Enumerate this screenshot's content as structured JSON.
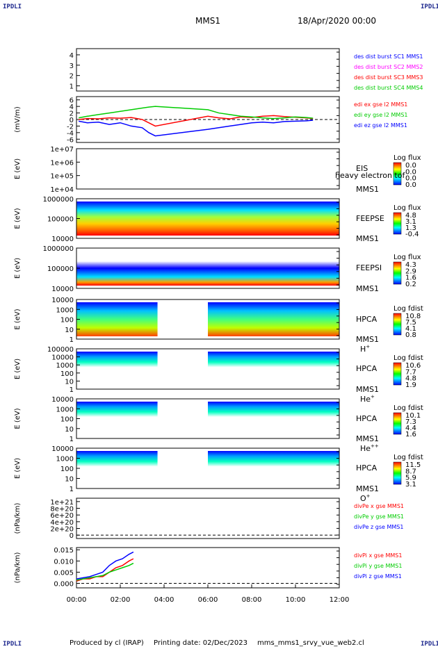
{
  "header": {
    "corner_label": "IPDLI",
    "mission": "MMS1",
    "date": "18/Apr/2020 00:00"
  },
  "footer": {
    "produced_by": "Produced by cl (IRAP)",
    "printing_date": "Printing date: 02/Dec/2023",
    "plot_name": "mms_mms1_srvy_vue_web2.cl"
  },
  "colors": {
    "blue": "#0000ff",
    "magenta": "#ff00ff",
    "red": "#ff0000",
    "green": "#00cc00"
  },
  "chart_data": [
    {
      "id": "des_dist",
      "type": "line",
      "yticks": [
        "1",
        "2",
        "3",
        "4"
      ],
      "ylim": [
        0.5,
        4.6
      ],
      "series": [
        {
          "name": "des dist burst SC1 MMS1",
          "color": "#0000ff",
          "values": []
        },
        {
          "name": "des dist burst SC2 MMS2",
          "color": "#ff00ff",
          "values": []
        },
        {
          "name": "des dist burst SC3 MMS3",
          "color": "#ff0000",
          "values": []
        },
        {
          "name": "des dist burst SC4 MMS4",
          "color": "#00cc00",
          "values": []
        }
      ]
    },
    {
      "id": "edi",
      "type": "line",
      "ylabel": "(mV/m)",
      "yticks": [
        "-6",
        "-4",
        "-2",
        "0",
        "2",
        "4",
        "6"
      ],
      "ylim": [
        -7,
        7
      ],
      "series": [
        {
          "name": "edi ex gse l2 MMS1",
          "color": "#ff0000",
          "x": [
            0.1,
            0.5,
            1.0,
            1.5,
            2.0,
            2.5,
            3.0,
            3.3,
            3.6,
            6.0,
            6.5,
            7.0,
            7.5,
            8.0,
            8.5,
            9.0,
            9.5,
            10.0,
            10.5,
            10.8
          ],
          "values": [
            0,
            0.3,
            0.2,
            0.5,
            0.4,
            0.6,
            0,
            -1,
            -2,
            1,
            0.5,
            0.2,
            0.8,
            0.6,
            1,
            1.2,
            0.9,
            0.7,
            0.5,
            0.3
          ]
        },
        {
          "name": "edi ey gse l2 MMS1",
          "color": "#00cc00",
          "x": [
            0.1,
            0.5,
            1.0,
            1.5,
            2.0,
            2.5,
            3.0,
            3.3,
            3.6,
            6.0,
            6.5,
            7.0,
            7.5,
            8.0,
            8.5,
            9.0,
            9.5,
            10.0,
            10.5,
            10.8
          ],
          "values": [
            0.5,
            1,
            1.5,
            2,
            2.5,
            3,
            3.5,
            3.8,
            4,
            3,
            2,
            1.5,
            1,
            0.8,
            0.5,
            0.3,
            0.5,
            0.8,
            0.6,
            0.4
          ]
        },
        {
          "name": "edi ez gse l2 MMS1",
          "color": "#0000ff",
          "x": [
            0.1,
            0.5,
            1.0,
            1.5,
            2.0,
            2.5,
            3.0,
            3.3,
            3.6,
            6.0,
            6.5,
            7.0,
            7.5,
            8.0,
            8.5,
            9.0,
            9.5,
            10.0,
            10.5,
            10.8
          ],
          "values": [
            -0.5,
            -1,
            -0.8,
            -1.5,
            -1,
            -2,
            -2.5,
            -4,
            -5,
            -3,
            -2.5,
            -2,
            -1.5,
            -1,
            -0.8,
            -1,
            -0.6,
            -0.5,
            -0.4,
            -0.2
          ]
        }
      ]
    },
    {
      "id": "eis",
      "type": "heatmap",
      "ylabel": "E (eV)",
      "yticks": [
        "1e+04",
        "1e+05",
        "1e+06",
        "1e+07"
      ],
      "side_label": "EIS",
      "overlay_label": "heavy electron tof",
      "sc_label": "MMS1",
      "cbar_title": "Log flux",
      "cbar_ticks": [
        "0.0",
        "0.0",
        "0.0",
        "0.0"
      ]
    },
    {
      "id": "feepse",
      "type": "heatmap",
      "ylabel": "E (eV)",
      "yticks": [
        "10000",
        "100000",
        "1000000"
      ],
      "side_label": "FEEPSE",
      "sc_label": "MMS1",
      "cbar_title": "Log flux",
      "cbar_ticks": [
        "4.8",
        "3.1",
        "1.3",
        "-0.4"
      ]
    },
    {
      "id": "feepsi",
      "type": "heatmap",
      "ylabel": "E (eV)",
      "yticks": [
        "10000",
        "100000",
        "1000000"
      ],
      "side_label": "FEEPSI",
      "sc_label": "MMS1",
      "cbar_title": "Log flux",
      "cbar_ticks": [
        "4.3",
        "2.9",
        "1.6",
        "0.2"
      ]
    },
    {
      "id": "hpca_h",
      "type": "heatmap",
      "ylabel": "E (eV)",
      "yticks": [
        "1",
        "10",
        "100",
        "1000",
        "10000"
      ],
      "side_label": "HPCA",
      "sc_label": "MMS1",
      "species": "H",
      "species_sup": "+",
      "cbar_title": "Log fdist",
      "cbar_ticks": [
        "10.8",
        "7.5",
        "4.1",
        "0.8"
      ]
    },
    {
      "id": "hpca_he",
      "type": "heatmap",
      "ylabel": "E (eV)",
      "yticks": [
        "1",
        "10",
        "100",
        "1000",
        "10000",
        "100000"
      ],
      "side_label": "HPCA",
      "sc_label": "MMS1",
      "species": "He",
      "species_sup": "+",
      "cbar_title": "Log fdist",
      "cbar_ticks": [
        "10.6",
        "7.7",
        "4.8",
        "1.9"
      ]
    },
    {
      "id": "hpca_hepp",
      "type": "heatmap",
      "ylabel": "E (eV)",
      "yticks": [
        "1",
        "10",
        "100",
        "1000",
        "10000"
      ],
      "side_label": "HPCA",
      "sc_label": "MMS1",
      "species": "He",
      "species_sup": "++",
      "cbar_title": "Log fdist",
      "cbar_ticks": [
        "10.1",
        "7.3",
        "4.4",
        "1.6"
      ]
    },
    {
      "id": "hpca_o",
      "type": "heatmap",
      "ylabel": "E (eV)",
      "yticks": [
        "1",
        "10",
        "100",
        "1000",
        "10000"
      ],
      "side_label": "HPCA",
      "sc_label": "MMS1",
      "species": "O",
      "species_sup": "+",
      "cbar_title": "Log fdist",
      "cbar_ticks": [
        "11.5",
        "8.7",
        "5.9",
        "3.1"
      ]
    },
    {
      "id": "divpe",
      "type": "line",
      "ylabel": "(nPa/km)",
      "yticks": [
        "0",
        "2e+20",
        "4e+20",
        "6e+20",
        "8e+20",
        "1e+21"
      ],
      "ylim": [
        -1e+20,
        1.1e+21
      ],
      "series": [
        {
          "name": "divPe x gse MMS1",
          "color": "#ff0000",
          "values": []
        },
        {
          "name": "divPe y gse MMS1",
          "color": "#00cc00",
          "values": []
        },
        {
          "name": "divPe z gse MMS1",
          "color": "#0000ff",
          "values": []
        }
      ]
    },
    {
      "id": "divpi",
      "type": "line",
      "ylabel": "(nPa/km)",
      "yticks": [
        "0.000",
        "0.005",
        "0.010",
        "0.015"
      ],
      "ylim": [
        -0.002,
        0.016
      ],
      "series": [
        {
          "name": "divPi x gse MMS1",
          "color": "#ff0000",
          "x": [
            0,
            0.3,
            0.6,
            0.9,
            1.2,
            1.5,
            1.8,
            2.1,
            2.4,
            2.6
          ],
          "values": [
            0.001,
            0.002,
            0.002,
            0.003,
            0.003,
            0.005,
            0.007,
            0.008,
            0.01,
            0.011
          ]
        },
        {
          "name": "divPi y gse MMS1",
          "color": "#00cc00",
          "x": [
            0,
            0.3,
            0.6,
            0.9,
            1.2,
            1.5,
            1.8,
            2.1,
            2.4,
            2.6
          ],
          "values": [
            0.0015,
            0.002,
            0.0025,
            0.003,
            0.0035,
            0.005,
            0.006,
            0.007,
            0.008,
            0.009
          ]
        },
        {
          "name": "divPi z gse MMS1",
          "color": "#0000ff",
          "x": [
            0,
            0.3,
            0.6,
            0.9,
            1.2,
            1.5,
            1.8,
            2.1,
            2.4,
            2.6
          ],
          "values": [
            0.002,
            0.0025,
            0.003,
            0.004,
            0.005,
            0.008,
            0.01,
            0.011,
            0.013,
            0.014
          ]
        }
      ]
    }
  ],
  "time_axis": {
    "xlim": [
      0,
      12
    ],
    "ticks": [
      "00:00",
      "02:00",
      "04:00",
      "06:00",
      "08:00",
      "10:00",
      "12:00"
    ]
  }
}
